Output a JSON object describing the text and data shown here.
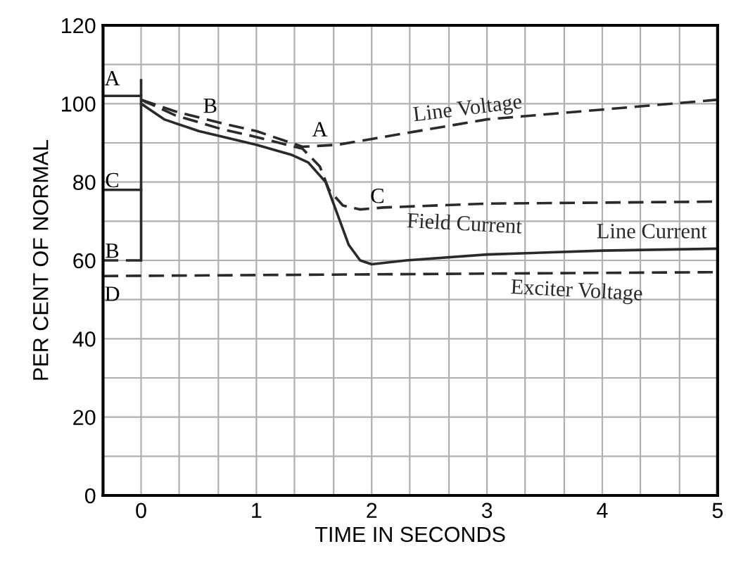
{
  "chart_data": {
    "type": "line",
    "xlabel": "TIME IN SECONDS",
    "ylabel": "PER CENT OF NORMAL",
    "xlim": [
      -0.33,
      5
    ],
    "ylim": [
      0,
      120
    ],
    "xticks": [
      {
        "value": -0.33,
        "label": null
      },
      0,
      {
        "value": 0.33,
        "label": null
      },
      {
        "value": 0.67,
        "label": null
      },
      1,
      {
        "value": 1.33,
        "label": null
      },
      {
        "value": 1.67,
        "label": null
      },
      2,
      {
        "value": 2.33,
        "label": null
      },
      {
        "value": 2.67,
        "label": null
      },
      3,
      {
        "value": 3.33,
        "label": null
      },
      {
        "value": 3.67,
        "label": null
      },
      4,
      {
        "value": 4.33,
        "label": null
      },
      {
        "value": 4.67,
        "label": null
      },
      5
    ],
    "yticks": [
      0,
      {
        "value": 10,
        "label": null
      },
      20,
      {
        "value": 30,
        "label": null
      },
      40,
      {
        "value": 50,
        "label": null
      },
      60,
      {
        "value": 70,
        "label": null
      },
      80,
      {
        "value": 90,
        "label": null
      },
      100,
      {
        "value": 110,
        "label": null
      },
      120
    ],
    "grid": true,
    "marker": "none",
    "series": [
      {
        "name": "Line Voltage",
        "color": "#2a2a2a",
        "line_style": "dashed",
        "x": [
          0,
          0.3,
          0.7,
          1.0,
          1.4,
          1.7,
          2,
          3,
          4,
          5
        ],
        "values": [
          101,
          98,
          95,
          93,
          89,
          89.5,
          91,
          96,
          98.5,
          101
        ]
      },
      {
        "name": "Field Current",
        "color": "#2a2a2a",
        "line_style": "dashed",
        "x": [
          0,
          0.3,
          0.7,
          1.0,
          1.4,
          1.55,
          1.63,
          1.75,
          1.9,
          2.1,
          3,
          5
        ],
        "values": [
          101,
          97,
          93.5,
          91.5,
          88.5,
          84,
          78,
          74,
          73,
          73.5,
          74.5,
          75
        ]
      },
      {
        "name": "Line Current",
        "color": "#2a2a2a",
        "line_style": "solid",
        "x": [
          0,
          0.2,
          0.5,
          1.0,
          1.3,
          1.45,
          1.6,
          1.7,
          1.8,
          1.9,
          2,
          2.3,
          3,
          4,
          5
        ],
        "values": [
          100,
          96,
          93,
          89.5,
          87,
          85,
          80,
          72,
          64,
          60,
          59,
          60,
          61.5,
          62.5,
          63
        ]
      },
      {
        "name": "Exciter Voltage",
        "color": "#2a2a2a",
        "line_style": "dashed",
        "x": [
          -0.33,
          5
        ],
        "values": [
          56,
          57
        ]
      },
      {
        "color": "#2a2a2a",
        "line_style": "solid",
        "x": [
          -0.33,
          0,
          0
        ],
        "values": [
          102,
          102,
          106
        ]
      },
      {
        "color": "#2a2a2a",
        "line_style": "solid",
        "x": [
          -0.33,
          0
        ],
        "values": [
          78,
          78
        ]
      },
      {
        "color": "#2a2a2a",
        "line_style": "dashed",
        "x": [
          -0.33,
          0
        ],
        "values": [
          60,
          60
        ]
      },
      {
        "color": "#2a2a2a",
        "line_style": "solid",
        "x": [
          0,
          0
        ],
        "values": [
          60,
          102
        ]
      }
    ],
    "annotations": [
      "A",
      "C",
      "B",
      "D",
      "B",
      "A",
      "C"
    ]
  }
}
